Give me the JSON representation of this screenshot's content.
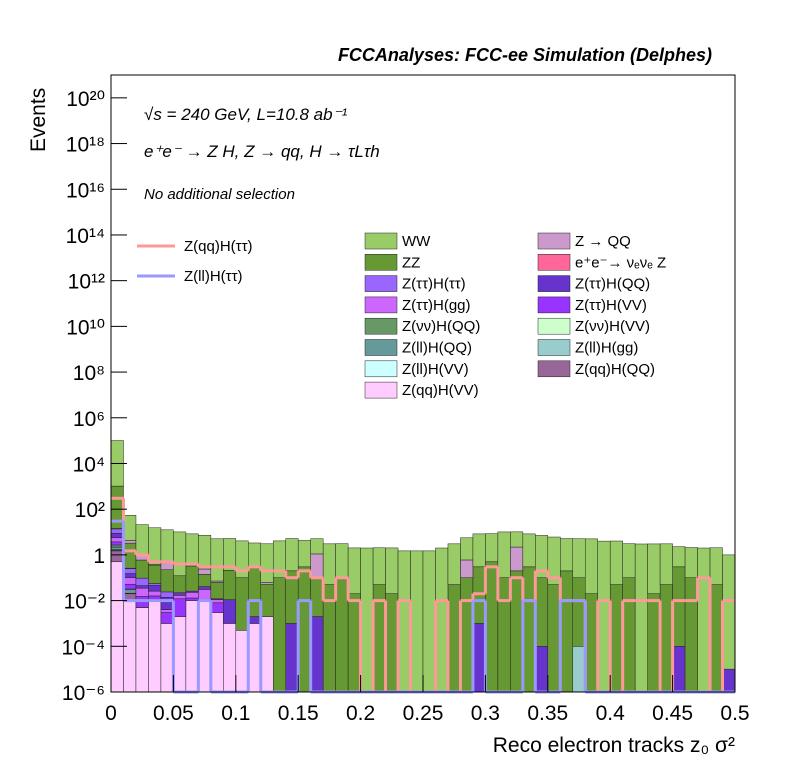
{
  "chart_data": {
    "type": "stacked-histogram",
    "title": "FCCAnalyses: FCC-ee Simulation (Delphes)",
    "annotations": [
      "√s = 240 GeV, L=10.8 ab⁻¹",
      "e⁺e⁻ → Z H, Z → qq, H → τLτh",
      "No additional selection"
    ],
    "xlabel": "Reco electron tracks z₀ σ²",
    "ylabel": "Events",
    "log_y": true,
    "xlim": [
      0,
      0.5
    ],
    "ylim": [
      1e-06,
      1e+21
    ],
    "xticks": [
      0,
      0.05,
      0.1,
      0.15,
      0.2,
      0.25,
      0.3,
      0.35,
      0.4,
      0.45,
      0.5
    ],
    "yticks": [
      {
        "value": 1e-06,
        "label": "10⁻⁶"
      },
      {
        "value": 0.0001,
        "label": "10⁻⁴"
      },
      {
        "value": 0.01,
        "label": "10⁻²"
      },
      1,
      {
        "value": 100.0,
        "label": "10²"
      },
      {
        "value": 10000.0,
        "label": "10⁴"
      },
      {
        "value": 1000000.0,
        "label": "10⁶"
      },
      {
        "value": 100000000.0,
        "label": "10⁸"
      },
      {
        "value": 10000000000.0,
        "label": "10¹⁰"
      },
      {
        "value": 1000000000000.0,
        "label": "10¹²"
      },
      {
        "value": 100000000000000.0,
        "label": "10¹⁴"
      },
      {
        "value": 1e+16,
        "label": "10¹⁶"
      },
      {
        "value": 1e+18,
        "label": "10¹⁸"
      },
      {
        "value": 1e+20,
        "label": "10²⁰"
      }
    ],
    "bins": [
      0,
      0.01,
      0.02,
      0.03,
      0.04,
      0.05,
      0.06,
      0.07,
      0.08,
      0.09,
      0.1,
      0.11,
      0.12,
      0.13,
      0.14,
      0.15,
      0.16,
      0.17,
      0.18,
      0.19,
      0.2,
      0.21,
      0.22,
      0.23,
      0.24,
      0.25,
      0.26,
      0.27,
      0.28,
      0.29,
      0.3,
      0.31,
      0.32,
      0.33,
      0.34,
      0.35,
      0.36,
      0.37,
      0.38,
      0.39,
      0.4,
      0.41,
      0.42,
      0.43,
      0.44,
      0.45,
      0.46,
      0.47,
      0.48,
      0.49,
      0.5
    ],
    "series": [
      {
        "name": "WW",
        "color": "#99cc66",
        "values": [
          100000,
          50,
          20,
          15,
          12,
          10,
          8,
          7,
          5,
          5,
          4,
          3,
          3,
          4,
          5,
          4,
          4,
          3,
          3,
          2,
          2,
          2,
          2,
          1.5,
          1.5,
          1.5,
          2,
          3,
          5,
          8,
          8,
          10,
          8,
          8,
          7,
          6,
          5,
          5,
          5,
          4,
          4,
          3,
          3,
          3,
          3,
          2,
          2,
          2,
          2,
          1
        ]
      },
      {
        "name": "Z → QQ",
        "color": "#cc99cc",
        "values": [
          10,
          1,
          0.5,
          0.02,
          0.3,
          0,
          0,
          0.1,
          0.01,
          0,
          0,
          0.02,
          0.01,
          0,
          0,
          0,
          1,
          0,
          0,
          0,
          0,
          0,
          0,
          0,
          0,
          0,
          0,
          0,
          0.5,
          0,
          0,
          0,
          2,
          0,
          0,
          0,
          0,
          0,
          0,
          0,
          0,
          0,
          0,
          0,
          0,
          0,
          0,
          0,
          0,
          0
        ]
      },
      {
        "name": "ZZ",
        "color": "#669933",
        "values": [
          1000,
          3,
          0.5,
          0.3,
          0.2,
          0.1,
          0.3,
          0.1,
          0.05,
          0.2,
          0.1,
          0.3,
          0.05,
          0.1,
          0.2,
          0.3,
          0.1,
          0.05,
          0.1,
          0.02,
          0,
          0.05,
          0.02,
          0,
          0,
          0,
          0,
          0.05,
          0.1,
          0.3,
          0.5,
          0.1,
          0.2,
          0.3,
          0.1,
          0.05,
          0.2,
          0.1,
          0.02,
          0,
          0.05,
          0.1,
          0,
          0.02,
          0.05,
          0.3,
          0.1,
          0,
          0.05,
          0
        ]
      },
      {
        "name": "e⁺e⁻→ νₑνₑ Z",
        "color": "#ff6699",
        "values": [
          0.5,
          0.01,
          0.001,
          0,
          0,
          0,
          0,
          0,
          0,
          0,
          0,
          0,
          0,
          0,
          0,
          0,
          0,
          0,
          0,
          0,
          0,
          0,
          0,
          0,
          0,
          0,
          0,
          0,
          0,
          0,
          0,
          0,
          0,
          0,
          0,
          0,
          0,
          0,
          0,
          0,
          0,
          0,
          0,
          0,
          0,
          0,
          0,
          0,
          0,
          0
        ]
      },
      {
        "name": "Z(ττ)H(ττ)",
        "color": "#9966ff",
        "values": [
          5,
          0.1,
          0.05,
          0.01,
          0.01,
          0,
          0,
          0,
          0,
          0,
          0,
          0,
          0,
          0,
          0,
          0,
          0,
          0,
          0,
          0,
          0,
          0,
          0,
          0,
          0,
          0,
          0,
          0,
          0,
          0,
          0,
          0,
          0,
          0,
          0,
          0,
          0,
          0,
          0,
          0,
          0,
          0,
          0,
          0,
          0,
          0,
          0,
          0,
          0,
          0
        ]
      },
      {
        "name": "Z(ττ)H(QQ)",
        "color": "#6633cc",
        "values": [
          3,
          0.05,
          0.01,
          0.02,
          0.01,
          0.005,
          0.003,
          0.01,
          0.001,
          0.01,
          0,
          0.001,
          0,
          0,
          0.001,
          0,
          0.002,
          0,
          0,
          0,
          0,
          0,
          0,
          0,
          0,
          0,
          0,
          0,
          0,
          0.001,
          0,
          0,
          0,
          0,
          0.0001,
          0,
          0,
          0,
          0,
          0,
          0,
          0,
          0,
          0,
          0,
          0.0001,
          0,
          0,
          0,
          1e-05
        ]
      },
      {
        "name": "Z(ττ)H(gg)",
        "color": "#cc66ff",
        "values": [
          2,
          0.05,
          0.02,
          0.01,
          0.001,
          0.005,
          0.01,
          0.02,
          0.003,
          0,
          0,
          0,
          0,
          0,
          0,
          0,
          0,
          0,
          0,
          0,
          0,
          0,
          0,
          0,
          0,
          0,
          0,
          0,
          0,
          0,
          0,
          0,
          0,
          0,
          0,
          0,
          0,
          0,
          0,
          0,
          0,
          0,
          0,
          0,
          0,
          0,
          0,
          0,
          0,
          0
        ]
      },
      {
        "name": "Z(ττ)H(VV)",
        "color": "#9933ff",
        "values": [
          1,
          0.02,
          0.01,
          0.005,
          0.002,
          0.01,
          0.003,
          0.001,
          0.005,
          0,
          0,
          0,
          0,
          0,
          0,
          0,
          0,
          0,
          0,
          0,
          0,
          0,
          0,
          0,
          0,
          0,
          0,
          0,
          0,
          0,
          0,
          0,
          0,
          0,
          0,
          0,
          0,
          0,
          0,
          0,
          0,
          0,
          0,
          0,
          0,
          0,
          0,
          0,
          0,
          0
        ]
      },
      {
        "name": "Z(νν)H(QQ)",
        "color": "#669966",
        "values": [
          0.5,
          0.001,
          0.0001,
          0,
          0,
          0,
          0,
          0,
          0,
          0,
          0,
          0,
          0,
          0,
          0,
          0,
          0,
          0,
          0,
          0,
          0,
          0,
          0,
          0,
          0,
          0,
          0,
          0,
          0,
          0,
          0,
          0,
          0,
          0,
          0,
          0,
          0,
          0,
          0,
          0,
          0,
          0,
          0,
          0,
          0,
          0,
          0,
          0,
          0,
          0
        ]
      },
      {
        "name": "Z(νν)H(VV)",
        "color": "#ccffcc",
        "values": [
          0.01,
          0,
          0,
          0,
          0,
          0,
          0,
          0,
          0,
          0,
          0,
          0,
          0,
          0,
          0,
          0,
          0,
          0,
          0,
          0,
          0,
          0,
          0,
          0,
          0,
          0,
          0,
          0,
          0,
          0,
          0,
          0,
          0,
          0,
          0,
          0,
          0,
          0,
          0,
          0,
          0,
          0,
          0,
          0,
          0,
          0,
          0,
          0,
          0,
          0
        ]
      },
      {
        "name": "Z(ll)H(QQ)",
        "color": "#669999",
        "values": [
          0.5,
          0.01,
          0,
          0,
          0,
          0,
          0,
          0,
          0,
          0,
          0,
          0,
          0,
          0,
          0,
          0,
          0,
          0,
          0,
          0,
          0,
          0,
          0,
          0,
          0,
          0,
          0,
          0,
          0,
          0,
          0,
          0,
          0,
          0,
          0,
          0,
          0,
          0,
          0,
          0,
          0,
          0,
          0,
          0,
          0,
          0,
          0,
          0,
          0,
          0
        ]
      },
      {
        "name": "Z(ll)H(gg)",
        "color": "#99cccc",
        "values": [
          0.1,
          0,
          0,
          0,
          0,
          0,
          0,
          0,
          0,
          0,
          0,
          0,
          0,
          0,
          0,
          0,
          0,
          0,
          0,
          0,
          0,
          0,
          0,
          0,
          0,
          0,
          0,
          0,
          0,
          0,
          0,
          0,
          0,
          0,
          0,
          0,
          0,
          0.0001,
          0,
          0,
          0,
          0,
          0,
          0,
          0,
          0,
          0,
          0,
          0,
          0
        ]
      },
      {
        "name": "Z(ll)H(VV)",
        "color": "#ccffff",
        "values": [
          0.1,
          0.001,
          0,
          0.001,
          0,
          0,
          0,
          0,
          0,
          0,
          0,
          0,
          0,
          0,
          0,
          0,
          0,
          0,
          0,
          0,
          0,
          0,
          0,
          0,
          0,
          0,
          0,
          0,
          0,
          0,
          0,
          0,
          0,
          0,
          0,
          0,
          0,
          0,
          0,
          0,
          0,
          0,
          0,
          0,
          0,
          0,
          0,
          0,
          0,
          0
        ]
      },
      {
        "name": "Z(qq)H(QQ)",
        "color": "#996699",
        "values": [
          1,
          0.01,
          0,
          0,
          0,
          0,
          0,
          0,
          0,
          0,
          0,
          0,
          0,
          0,
          0,
          0,
          0,
          0,
          0,
          0,
          0,
          0,
          0,
          0,
          0,
          0,
          0,
          0,
          0,
          0,
          0,
          0,
          0,
          0,
          0,
          0,
          0,
          0,
          0,
          0,
          0,
          0,
          0,
          0,
          0,
          0,
          0,
          0,
          0,
          0
        ]
      },
      {
        "name": "Z(qq)H(VV)",
        "color": "#ffccff",
        "values": [
          0.5,
          0.01,
          0.005,
          0.01,
          0.001,
          0.002,
          0.01,
          0.01,
          0.003,
          0.001,
          0.0005,
          0.001,
          0.002,
          0,
          0,
          0,
          0,
          0,
          0,
          0,
          0,
          0,
          0,
          0,
          0,
          0,
          0,
          0,
          0,
          0,
          0,
          0,
          0,
          0,
          0,
          0,
          0,
          0,
          0,
          0,
          0,
          0,
          0,
          0,
          0,
          0,
          0,
          0,
          0,
          0
        ]
      }
    ],
    "line_series": [
      {
        "name": "Z(qq)H(ττ)",
        "color": "#ff9999",
        "values": [
          300,
          1.5,
          1,
          0.5,
          0.5,
          0.4,
          0.4,
          0.3,
          0.3,
          0.3,
          0.2,
          0.3,
          0.2,
          0.2,
          0.1,
          0.2,
          0.1,
          0.01,
          0.1,
          0.01,
          0,
          0.01,
          0,
          0.01,
          0,
          0,
          0.01,
          0,
          0.01,
          0.02,
          0.3,
          0.01,
          0.1,
          0.01,
          0.2,
          0.1,
          0.01,
          0.01,
          0,
          0.01,
          0,
          0.01,
          0.01,
          0.01,
          0,
          0.01,
          0.01,
          0.1,
          0,
          0.01
        ]
      },
      {
        "name": "Z(ll)H(ττ)",
        "color": "#9999ff",
        "values": [
          30,
          0.01,
          0.01,
          0.01,
          0.01,
          0,
          0,
          0.01,
          0,
          0,
          0,
          0.01,
          0,
          0,
          0,
          0.01,
          0,
          0,
          0,
          0,
          0,
          0,
          0,
          0,
          0,
          0,
          0,
          0,
          0,
          0.01,
          0,
          0,
          0,
          0.01,
          0,
          0,
          0.01,
          0.01,
          0,
          0,
          0,
          0,
          0,
          0,
          0,
          0,
          0,
          0,
          0,
          0
        ]
      }
    ]
  }
}
